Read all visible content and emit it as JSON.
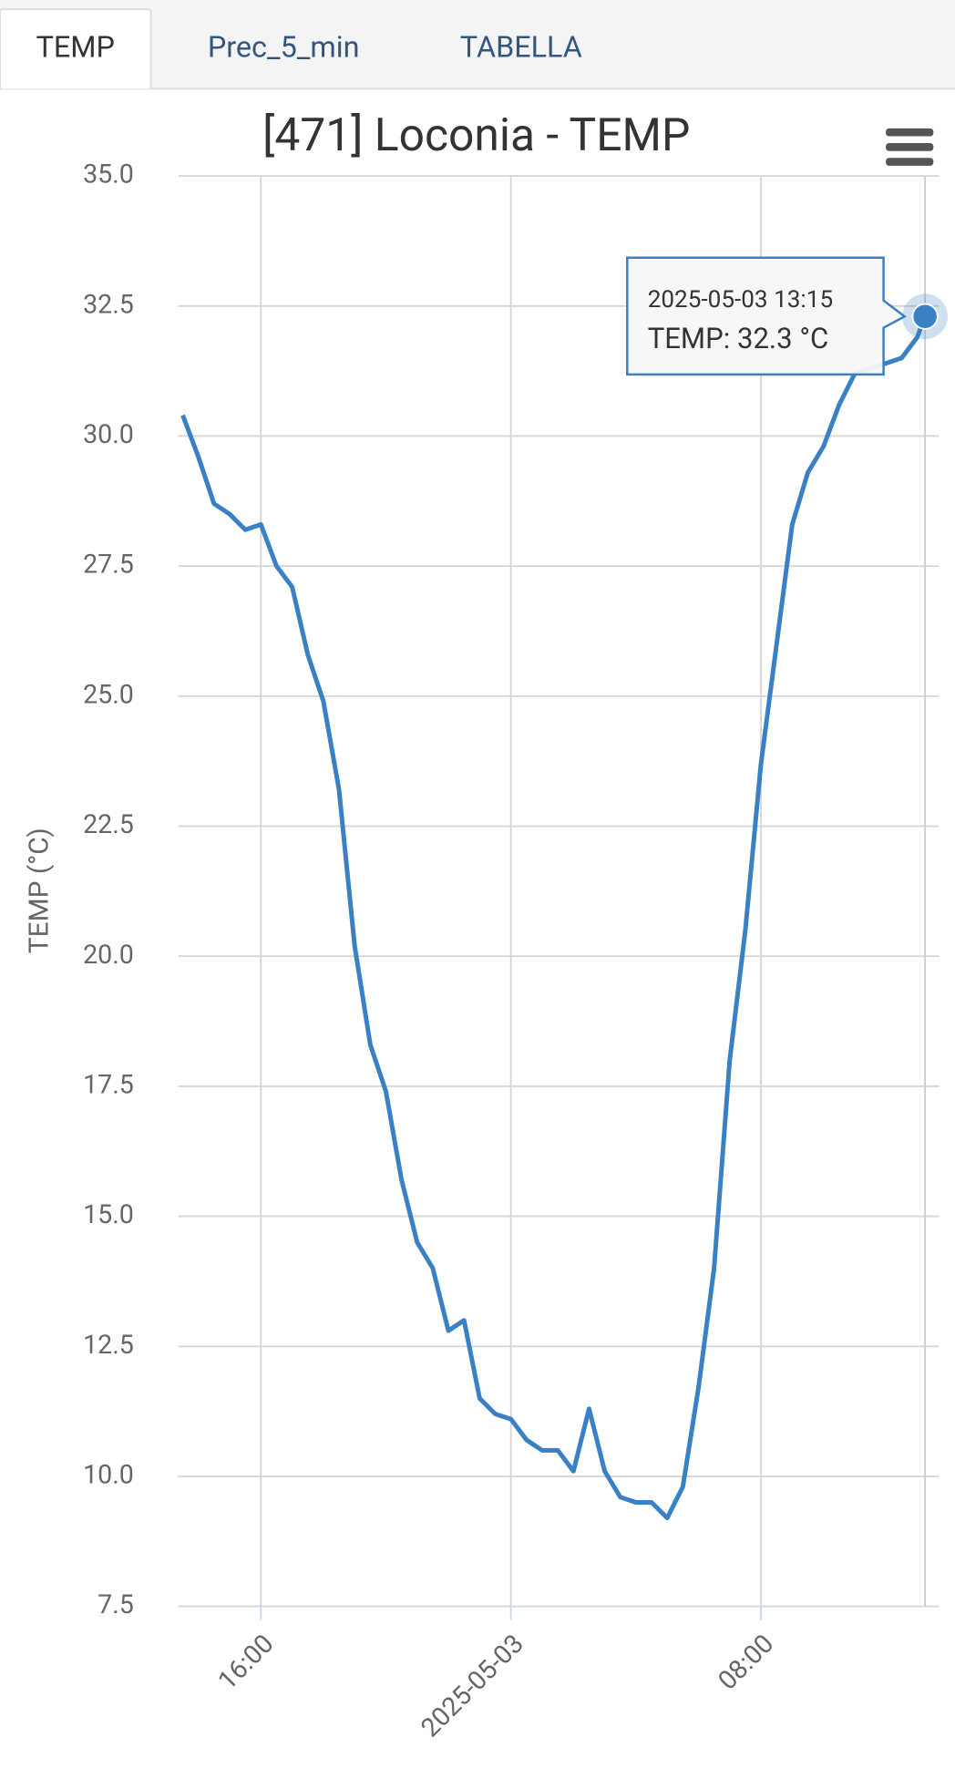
{
  "tabs": {
    "items": [
      "TEMP",
      "Prec_5_min",
      "TABELLA"
    ],
    "active": 0
  },
  "chart_data": {
    "type": "line",
    "title": "[471] Loconia - TEMP",
    "y_label": "TEMP (°C)",
    "x": [
      "2025-05-02 13:30",
      "2025-05-02 14:00",
      "2025-05-02 14:30",
      "2025-05-02 15:00",
      "2025-05-02 15:30",
      "2025-05-02 16:00",
      "2025-05-02 16:30",
      "2025-05-02 17:00",
      "2025-05-02 17:30",
      "2025-05-02 18:00",
      "2025-05-02 18:30",
      "2025-05-02 19:00",
      "2025-05-02 19:30",
      "2025-05-02 20:00",
      "2025-05-02 20:30",
      "2025-05-02 21:00",
      "2025-05-02 21:30",
      "2025-05-02 22:00",
      "2025-05-02 22:30",
      "2025-05-02 23:00",
      "2025-05-02 23:30",
      "2025-05-03 00:00",
      "2025-05-03 00:30",
      "2025-05-03 01:00",
      "2025-05-03 01:30",
      "2025-05-03 02:00",
      "2025-05-03 02:30",
      "2025-05-03 03:00",
      "2025-05-03 03:30",
      "2025-05-03 04:00",
      "2025-05-03 04:30",
      "2025-05-03 05:00",
      "2025-05-03 05:30",
      "2025-05-03 06:00",
      "2025-05-03 06:30",
      "2025-05-03 07:00",
      "2025-05-03 07:30",
      "2025-05-03 08:00",
      "2025-05-03 08:30",
      "2025-05-03 09:00",
      "2025-05-03 09:30",
      "2025-05-03 10:00",
      "2025-05-03 10:30",
      "2025-05-03 11:00",
      "2025-05-03 11:30",
      "2025-05-03 12:00",
      "2025-05-03 12:30",
      "2025-05-03 13:00",
      "2025-05-03 13:15"
    ],
    "series": [
      {
        "name": "TEMP",
        "color": "#3a80c4",
        "values": [
          30.4,
          29.6,
          28.7,
          28.5,
          28.2,
          28.3,
          27.5,
          27.1,
          25.8,
          24.9,
          23.2,
          20.2,
          18.3,
          17.4,
          15.7,
          14.5,
          14.0,
          12.8,
          13.0,
          11.5,
          11.2,
          11.1,
          10.7,
          10.5,
          10.5,
          10.1,
          11.3,
          10.1,
          9.6,
          9.5,
          9.5,
          9.2,
          9.8,
          11.7,
          14.0,
          18.0,
          20.5,
          23.7,
          26.0,
          28.3,
          29.3,
          29.8,
          30.6,
          31.2,
          31.3,
          31.4,
          31.5,
          31.9,
          32.3
        ]
      }
    ],
    "xlim": [
      "2025-05-02 13:21",
      "2025-05-03 13:42"
    ],
    "xticks": [
      {
        "value": "2025-05-02 16:00",
        "label": "16:00"
      },
      {
        "value": "2025-05-03 00:00",
        "label": "2025-05-03"
      },
      {
        "value": "2025-05-03 08:00",
        "label": "08:00"
      }
    ],
    "ylim": [
      7.5,
      35
    ],
    "yticks": [
      7.5,
      {
        "value": 10,
        "label": "10.0"
      },
      12.5,
      {
        "value": 15,
        "label": "15.0"
      },
      17.5,
      {
        "value": 20,
        "label": "20.0"
      },
      22.5,
      {
        "value": 25,
        "label": "25.0"
      },
      27.5,
      {
        "value": 30,
        "label": "30.0"
      },
      32.5,
      {
        "value": 35,
        "label": "35.0"
      }
    ],
    "grid": true,
    "tooltip": {
      "point": 48,
      "x": "2025-05-03 13:15",
      "text": "TEMP: 32.3 °C"
    }
  }
}
